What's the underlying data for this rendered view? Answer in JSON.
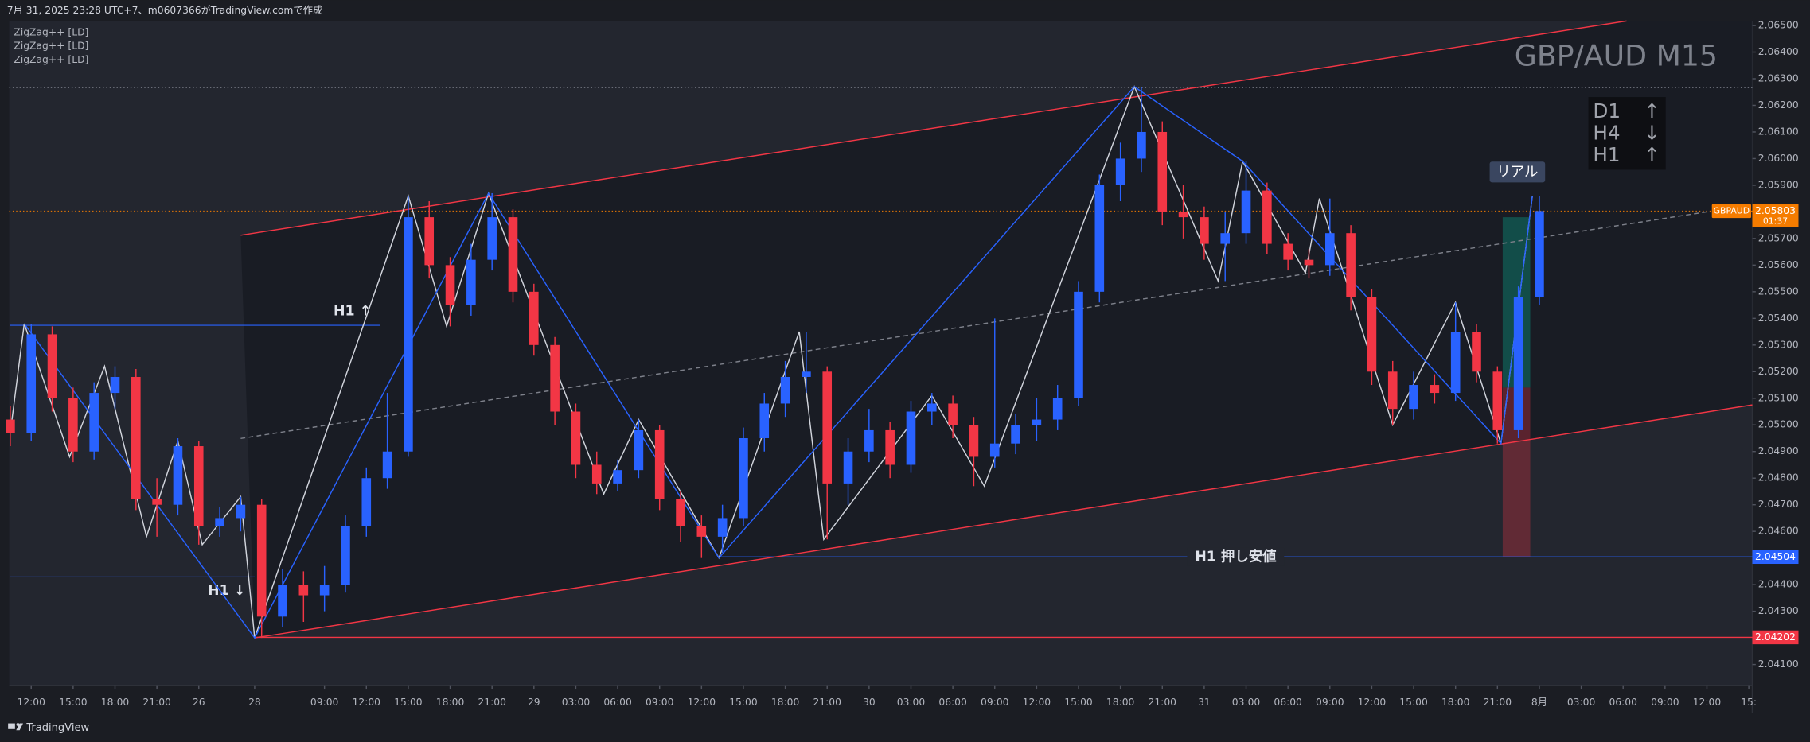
{
  "header": "7月 31, 2025 23:28 UTC+7、m0607366がTradingView.comで作成",
  "footer": "TradingView",
  "chart_data": {
    "type": "candlestick",
    "title": "GBP/AUD M15",
    "indicators": [
      "ZigZag++ [LD]",
      "ZigZag++ [LD]",
      "ZigZag++ [LD]"
    ],
    "up_color": "#2962ff",
    "down_color": "#f23645",
    "x": [
      -6,
      0,
      6,
      12,
      18,
      24,
      30,
      36,
      42,
      48,
      54,
      60,
      66,
      72,
      78,
      84,
      90,
      96,
      102,
      108,
      114,
      120,
      126,
      132,
      138,
      144,
      150,
      156,
      162,
      168,
      174,
      180,
      186,
      192,
      198,
      204,
      210,
      216,
      222,
      228,
      234,
      240,
      246,
      252,
      258,
      264,
      270,
      276,
      282,
      288,
      294,
      300,
      306,
      312,
      318,
      324,
      330,
      336,
      342,
      348,
      354,
      360,
      366,
      372,
      378,
      384,
      390,
      396,
      402,
      408,
      414,
      420,
      426,
      432
    ],
    "open": [
      2.0502,
      2.0497,
      2.0534,
      2.051,
      2.049,
      2.0512,
      2.0518,
      2.0472,
      2.047,
      2.0492,
      2.0462,
      2.0465,
      2.047,
      2.0428,
      2.044,
      2.0436,
      2.044,
      2.0462,
      2.048,
      2.049,
      2.0578,
      2.056,
      2.0545,
      2.0562,
      2.0578,
      2.055,
      2.053,
      2.0505,
      2.0485,
      2.0478,
      2.0483,
      2.0498,
      2.0472,
      2.0462,
      2.0458,
      2.0465,
      2.0495,
      2.0508,
      2.0518,
      2.052,
      2.0478,
      2.049,
      2.0498,
      2.0485,
      2.0505,
      2.0508,
      2.05,
      2.0488,
      2.0493,
      2.05,
      2.0502,
      2.051,
      2.055,
      2.059,
      2.06,
      2.061,
      2.058,
      2.0578,
      2.0568,
      2.0572,
      2.0588,
      2.0568,
      2.0562,
      2.056,
      2.0572,
      2.0548,
      2.052,
      2.0506,
      2.0515,
      2.0512,
      2.0535,
      2.052,
      2.0498,
      2.0548
    ],
    "high": [
      2.0507,
      2.0538,
      2.0537,
      2.0514,
      2.0516,
      2.0522,
      2.0521,
      2.048,
      2.0495,
      2.0494,
      2.0469,
      2.0473,
      2.0472,
      2.0446,
      2.0445,
      2.0447,
      2.0466,
      2.0484,
      2.0512,
      2.0586,
      2.0584,
      2.0563,
      2.0568,
      2.0587,
      2.0581,
      2.0553,
      2.0533,
      2.0508,
      2.049,
      2.0487,
      2.0502,
      2.05,
      2.0475,
      2.0466,
      2.047,
      2.0499,
      2.0512,
      2.0524,
      2.0535,
      2.0522,
      2.0495,
      2.0506,
      2.0501,
      2.0509,
      2.0512,
      2.0511,
      2.0503,
      2.054,
      2.0504,
      2.051,
      2.0515,
      2.0554,
      2.0594,
      2.0606,
      2.0627,
      2.0614,
      2.059,
      2.0582,
      2.058,
      2.0599,
      2.0591,
      2.0572,
      2.0566,
      2.0585,
      2.0575,
      2.0551,
      2.0524,
      2.052,
      2.0519,
      2.0546,
      2.0538,
      2.0522,
      2.0552,
      2.0586
    ],
    "low": [
      2.0492,
      2.0494,
      2.0505,
      2.0486,
      2.0487,
      2.0506,
      2.0468,
      2.0458,
      2.0466,
      2.0455,
      2.0458,
      2.046,
      2.042,
      2.0424,
      2.0426,
      2.043,
      2.0437,
      2.0458,
      2.0476,
      2.0488,
      2.0555,
      2.0537,
      2.0541,
      2.0558,
      2.0546,
      2.0526,
      2.05,
      2.048,
      2.0474,
      2.0475,
      2.048,
      2.0468,
      2.0456,
      2.045,
      2.0452,
      2.0462,
      2.049,
      2.0503,
      2.0512,
      2.0457,
      2.047,
      2.0486,
      2.048,
      2.0482,
      2.05,
      2.0495,
      2.0477,
      2.0484,
      2.0489,
      2.0494,
      2.0498,
      2.0507,
      2.0546,
      2.0584,
      2.0595,
      2.0575,
      2.057,
      2.0562,
      2.0554,
      2.0568,
      2.0564,
      2.0558,
      2.0555,
      2.0556,
      2.0543,
      2.0515,
      2.05,
      2.0502,
      2.0508,
      2.0509,
      2.0516,
      2.0493,
      2.0495,
      2.0545
    ],
    "close": [
      2.0497,
      2.0534,
      2.051,
      2.049,
      2.0512,
      2.0518,
      2.0472,
      2.047,
      2.0492,
      2.0462,
      2.0465,
      2.047,
      2.0428,
      2.044,
      2.0436,
      2.044,
      2.0462,
      2.048,
      2.049,
      2.0578,
      2.056,
      2.0545,
      2.0562,
      2.0578,
      2.055,
      2.053,
      2.0505,
      2.0485,
      2.0478,
      2.0483,
      2.0498,
      2.0472,
      2.0462,
      2.0458,
      2.0465,
      2.0495,
      2.0508,
      2.0518,
      2.052,
      2.0478,
      2.049,
      2.0498,
      2.0485,
      2.0505,
      2.0508,
      2.05,
      2.0488,
      2.0493,
      2.05,
      2.0502,
      2.051,
      2.055,
      2.059,
      2.06,
      2.061,
      2.058,
      2.0578,
      2.0568,
      2.0572,
      2.0588,
      2.0568,
      2.0562,
      2.056,
      2.0572,
      2.0548,
      2.052,
      2.0506,
      2.0515,
      2.0512,
      2.0535,
      2.052,
      2.0498,
      2.0548,
      2.05803
    ],
    "xlim": [
      -6.3,
      493
    ],
    "xticks": [
      {
        "value": 0,
        "label": "12:00"
      },
      {
        "value": 12,
        "label": "15:00"
      },
      {
        "value": 24,
        "label": "18:00"
      },
      {
        "value": 36,
        "label": "21:00"
      },
      {
        "value": 48,
        "label": "26"
      },
      {
        "value": 64,
        "label": "28"
      },
      {
        "value": 84,
        "label": "09:00"
      },
      {
        "value": 96,
        "label": "12:00"
      },
      {
        "value": 108,
        "label": "15:00"
      },
      {
        "value": 120,
        "label": "18:00"
      },
      {
        "value": 132,
        "label": "21:00"
      },
      {
        "value": 144,
        "label": "29"
      },
      {
        "value": 156,
        "label": "03:00"
      },
      {
        "value": 168,
        "label": "06:00"
      },
      {
        "value": 180,
        "label": "09:00"
      },
      {
        "value": 192,
        "label": "12:00"
      },
      {
        "value": 204,
        "label": "15:00"
      },
      {
        "value": 216,
        "label": "18:00"
      },
      {
        "value": 228,
        "label": "21:00"
      },
      {
        "value": 240,
        "label": "30"
      },
      {
        "value": 252,
        "label": "03:00"
      },
      {
        "value": 264,
        "label": "06:00"
      },
      {
        "value": 276,
        "label": "09:00"
      },
      {
        "value": 288,
        "label": "12:00"
      },
      {
        "value": 300,
        "label": "15:00"
      },
      {
        "value": 312,
        "label": "18:00"
      },
      {
        "value": 324,
        "label": "21:00"
      },
      {
        "value": 336,
        "label": "31"
      },
      {
        "value": 348,
        "label": "03:00"
      },
      {
        "value": 360,
        "label": "06:00"
      },
      {
        "value": 372,
        "label": "09:00"
      },
      {
        "value": 384,
        "label": "12:00"
      },
      {
        "value": 396,
        "label": "15:00"
      },
      {
        "value": 408,
        "label": "18:00"
      },
      {
        "value": 420,
        "label": "21:00"
      },
      {
        "value": 432,
        "label": "8月"
      },
      {
        "value": 444,
        "label": "03:00"
      },
      {
        "value": 456,
        "label": "06:00"
      },
      {
        "value": 468,
        "label": "09:00"
      },
      {
        "value": 480,
        "label": "12:00"
      },
      {
        "value": 492,
        "label": "15:"
      }
    ],
    "ylim": [
      2.04022,
      2.06517
    ],
    "yticks": [
      {
        "value": 2.065,
        "label": "2.06500"
      },
      {
        "value": 2.064,
        "label": "2.06400"
      },
      {
        "value": 2.063,
        "label": "2.06300"
      },
      {
        "value": 2.062,
        "label": "2.06200"
      },
      {
        "value": 2.061,
        "label": "2.06100"
      },
      {
        "value": 2.06,
        "label": "2.06000"
      },
      {
        "value": 2.059,
        "label": "2.05900"
      },
      {
        "value": 2.057,
        "label": "2.05700"
      },
      {
        "value": 2.056,
        "label": "2.05600"
      },
      {
        "value": 2.055,
        "label": "2.05500"
      },
      {
        "value": 2.054,
        "label": "2.05400"
      },
      {
        "value": 2.053,
        "label": "2.05300"
      },
      {
        "value": 2.052,
        "label": "2.05200"
      },
      {
        "value": 2.051,
        "label": "2.05100"
      },
      {
        "value": 2.05,
        "label": "2.05000"
      },
      {
        "value": 2.049,
        "label": "2.04900"
      },
      {
        "value": 2.048,
        "label": "2.04800"
      },
      {
        "value": 2.047,
        "label": "2.04700"
      },
      {
        "value": 2.046,
        "label": "2.04600"
      },
      {
        "value": 2.044,
        "label": "2.04400"
      },
      {
        "value": 2.043,
        "label": "2.04300"
      },
      {
        "value": 2.041,
        "label": "2.04100"
      }
    ],
    "grid": false,
    "lines": [
      {
        "color": "#f23645",
        "x": [
          60,
          457
        ],
        "values": [
          2.05712,
          2.06517
        ]
      },
      {
        "color": "#f23645",
        "x": [
          64,
          493
        ],
        "values": [
          2.042,
          2.05075
        ]
      },
      {
        "color": "#7d808a",
        "dash": true,
        "x": [
          60,
          480
        ],
        "values": [
          2.04949,
          2.058
        ]
      },
      {
        "color": "#d1d4dc",
        "x": [
          -6,
          -2,
          11,
          21,
          33,
          42,
          49,
          60,
          64,
          108,
          119,
          131,
          164,
          174,
          197,
          220,
          227,
          258,
          273,
          316,
          340,
          347,
          365,
          369,
          390,
          408,
          421,
          430
        ],
        "values": [
          2.0497,
          2.0538,
          2.0488,
          2.0522,
          2.0458,
          2.0494,
          2.0455,
          2.0473,
          2.042,
          2.0586,
          2.0537,
          2.0587,
          2.0474,
          2.0502,
          2.045,
          2.0535,
          2.0457,
          2.0511,
          2.0477,
          2.0627,
          2.0554,
          2.0599,
          2.0557,
          2.0585,
          2.05,
          2.0546,
          2.0493,
          2.0586
        ]
      },
      {
        "color": "#2962ff",
        "x": [
          -2,
          64,
          131,
          197,
          316,
          347,
          421,
          430
        ],
        "values": [
          2.0538,
          2.042,
          2.0587,
          2.045,
          2.0627,
          2.0599,
          2.0493,
          2.0586
        ]
      }
    ],
    "dotted_levels": [
      2.06266
    ],
    "h1_lines": [
      {
        "value": 2.05374,
        "x": [
          -6,
          100
        ],
        "label": "H1 ↑"
      },
      {
        "value": 2.04429,
        "x": [
          -6,
          64
        ],
        "label": "H1 ↓"
      }
    ],
    "levels": [
      {
        "value": 2.05803,
        "label": "2.05803",
        "symbol": "GBPAUD",
        "countdown": "01:37",
        "color": "#f57c00",
        "from": -6.3,
        "dotted": true
      },
      {
        "value": 2.04504,
        "label": "2.04504",
        "text": "H1 押し安値",
        "color": "#2962ff",
        "from": 197
      },
      {
        "value": 2.04202,
        "label": "2.04202",
        "color": "#f23645",
        "from": 64
      }
    ],
    "position": {
      "x": [
        421.5,
        429.4
      ],
      "target": 2.0578,
      "entry": 2.0514,
      "stop": 2.04504
    },
    "real_label": "リアル",
    "trend": [
      {
        "tf": "D1",
        "dir": "↑"
      },
      {
        "tf": "H4",
        "dir": "↓"
      },
      {
        "tf": "H1",
        "dir": "↑"
      }
    ]
  }
}
